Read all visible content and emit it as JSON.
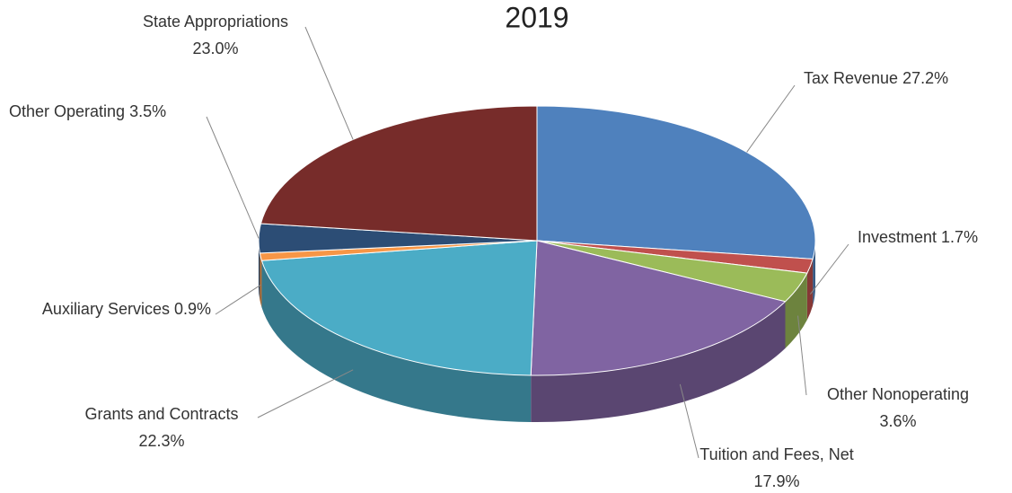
{
  "chart_data": {
    "type": "pie3d",
    "title": "2019",
    "categories": [
      "Tax Revenue",
      "Investment",
      "Other Nonoperating",
      "Tuition and Fees, Net",
      "Grants and Contracts",
      "Auxiliary Services",
      "Other Operating",
      "State Appropriations"
    ],
    "values": [
      27.2,
      1.7,
      3.6,
      17.9,
      22.3,
      0.9,
      3.5,
      23.0
    ],
    "value_labels": [
      "27.2%",
      "1.7%",
      "3.6%",
      "17.9%",
      "22.3%",
      "0.9%",
      "3.5%",
      "23.0%"
    ],
    "colors": [
      "#4f81bd",
      "#c0504d",
      "#9bbb59",
      "#8064a2",
      "#4bacc6",
      "#f79646",
      "#2c4d75",
      "#772c2a"
    ]
  }
}
